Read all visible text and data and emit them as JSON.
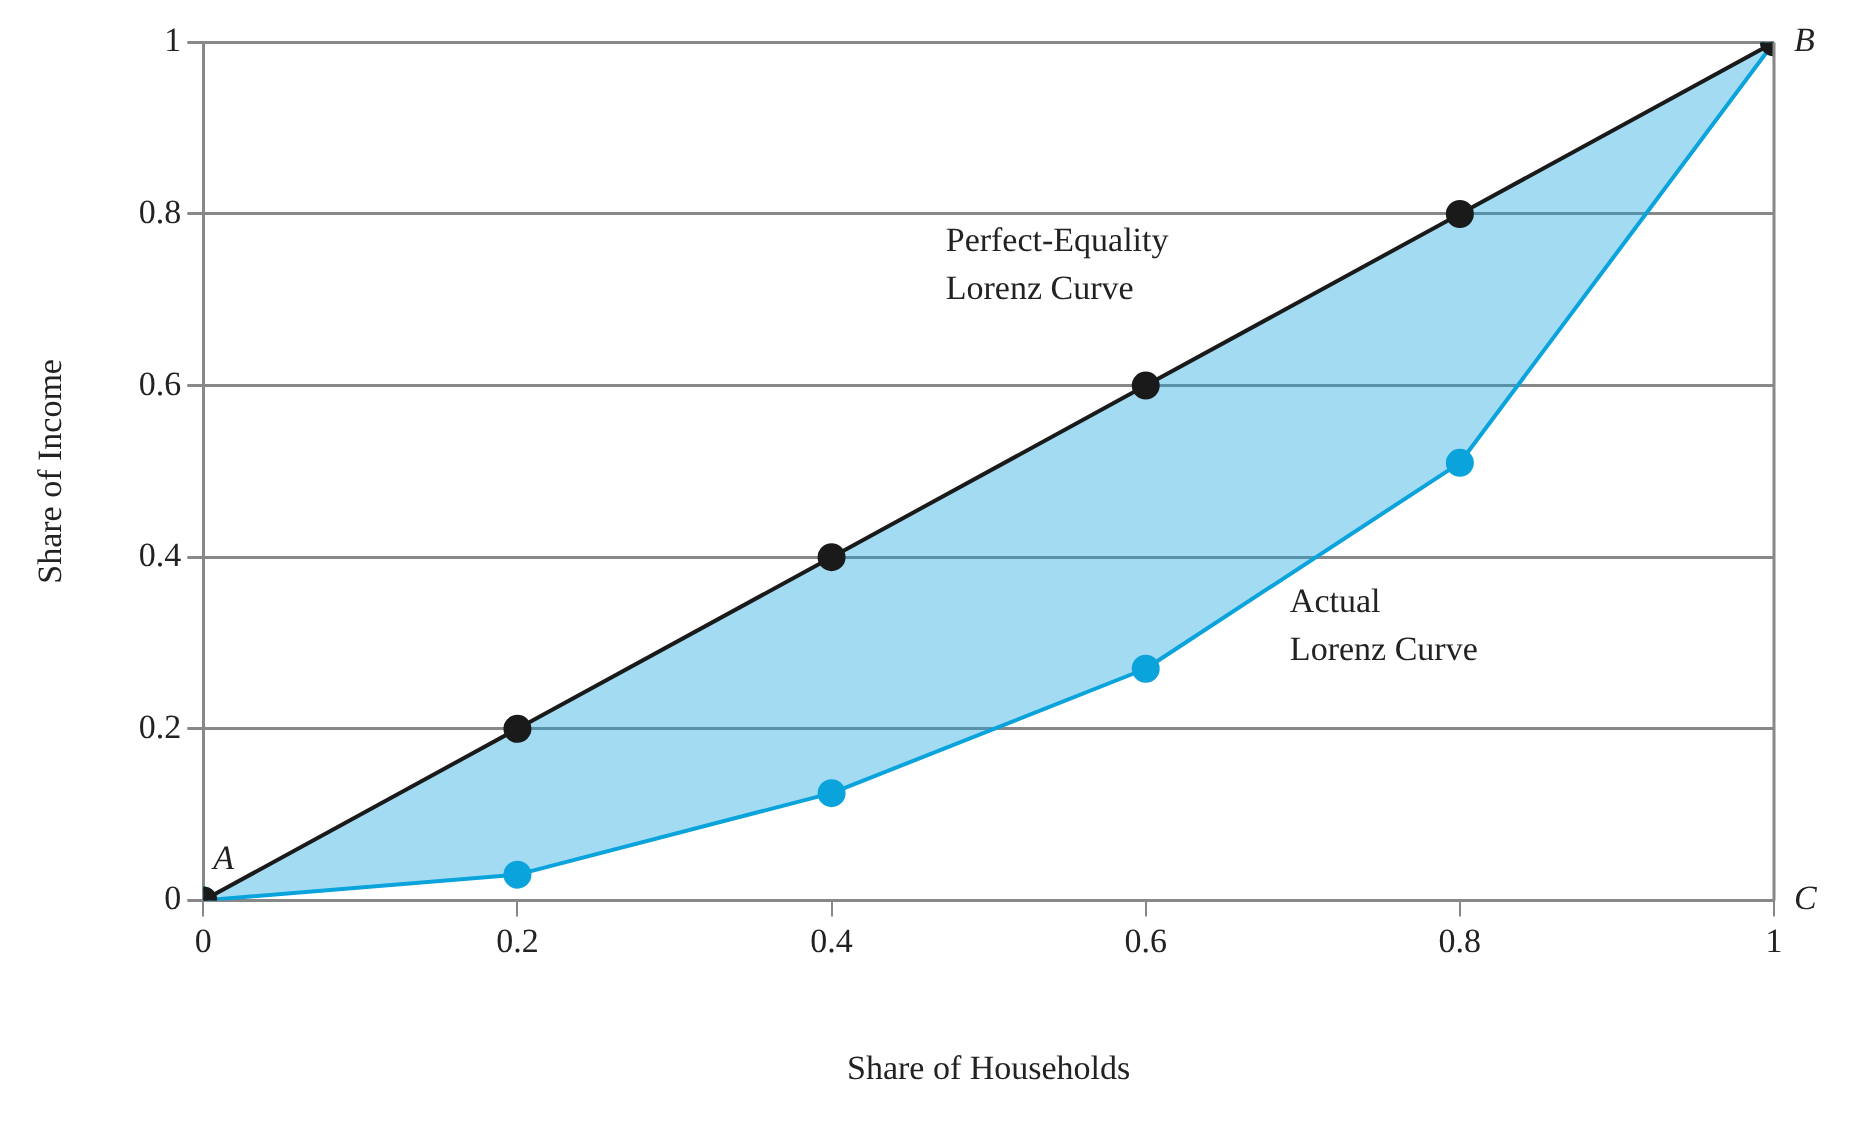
{
  "chart_data": {
    "type": "line",
    "xlabel": "Share of Households",
    "ylabel": "Share of Income",
    "x": [
      0,
      0.2,
      0.4,
      0.6,
      0.8,
      1
    ],
    "series": [
      {
        "name": "Perfect-Equality Lorenz Curve",
        "color": "#1a1a1a",
        "values": [
          0,
          0.2,
          0.4,
          0.6,
          0.8,
          1
        ]
      },
      {
        "name": "Actual Lorenz Curve",
        "color": "#0aa3dc",
        "values": [
          0,
          0.03,
          0.125,
          0.27,
          0.51,
          1
        ]
      }
    ],
    "xlim": [
      0,
      1
    ],
    "xticks": [
      0,
      0.2,
      0.4,
      0.6,
      0.8,
      1
    ],
    "ylim": [
      0,
      1
    ],
    "yticks": [
      0,
      0.2,
      0.4,
      0.6,
      0.8,
      1
    ],
    "grid": "y",
    "legend": false,
    "marker": "circle",
    "line_style": "solid",
    "annotations": [
      {
        "text": "A",
        "x": 0,
        "y": 0
      },
      {
        "text": "B",
        "x": 1,
        "y": 1
      },
      "C"
    ]
  }
}
